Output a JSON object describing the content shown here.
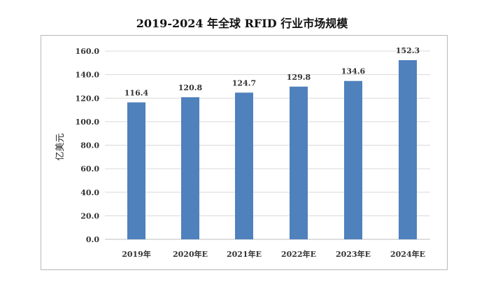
{
  "chart_data": {
    "type": "bar",
    "title": "2019-2024 年全球 RFID 行业市场规模",
    "ylabel": "亿美元",
    "xlabel": "",
    "categories": [
      "2019年",
      "2020年E",
      "2021年E",
      "2022年E",
      "2023年E",
      "2024年E"
    ],
    "values": [
      116.4,
      120.8,
      124.7,
      129.8,
      134.6,
      152.3
    ],
    "value_labels": [
      "116.4",
      "120.8",
      "124.7",
      "129.8",
      "134.6",
      "152.3"
    ],
    "ylim": [
      0,
      160
    ],
    "yticks": [
      "0.0",
      "20.0",
      "40.0",
      "60.0",
      "80.0",
      "100.0",
      "120.0",
      "140.0",
      "160.0"
    ],
    "ytick_values": [
      0,
      20,
      40,
      60,
      80,
      100,
      120,
      140,
      160
    ],
    "grid": true,
    "bar_color": "#4f81bd",
    "grid_color": "#d9d9d9"
  }
}
